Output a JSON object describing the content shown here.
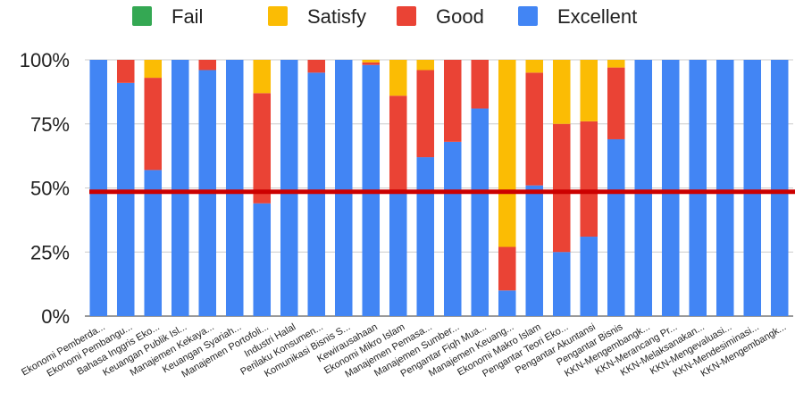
{
  "chart_data": {
    "type": "bar",
    "stacked": true,
    "percent": true,
    "legend_position": "top",
    "grid": true,
    "ylim": [
      0,
      100
    ],
    "y_ticks": [
      "0%",
      "25%",
      "50%",
      "75%",
      "100%"
    ],
    "categories": [
      "Ekonomi Pemberda...",
      "Ekonomi Pembangu...",
      "Bahasa Inggris Eko...",
      "Keuangan Publik Isl...",
      "Manajemen Kekaya...",
      "Keuangan Syariah...",
      "Manajemen Portofoli...",
      "Industri Halal",
      "Perilaku Konsumen...",
      "Komunikasi Bisnis S...",
      "Kewirausahaan",
      "Ekonomi Mikro Islam",
      "Manajemen Pemasa...",
      "Manajemen Sumber...",
      "Pengantar Fiqh Mua...",
      "Manajemen Keuang...",
      "Ekonomi Makro Islam",
      "Pengantar Teori Eko...",
      "Pengantar Akuntansi",
      "Pengantar Bisnis",
      "KKN-Mengembangk...",
      "KKN-Merancang Pr...",
      "KKN-Melaksanakan...",
      "KKN-Mengevaluasi...",
      "KKN-Mendesiminasi...",
      "KKN-Mengembangk..."
    ],
    "series": [
      {
        "name": "Fail",
        "color": "#34a853",
        "values": [
          0,
          0,
          0,
          0,
          0,
          0,
          0,
          0,
          0,
          0,
          0,
          0,
          0,
          0,
          0,
          0,
          0,
          0,
          0,
          0,
          0,
          0,
          0,
          0,
          0,
          0
        ]
      },
      {
        "name": "Satisfy",
        "color": "#fbbc04",
        "values": [
          0,
          0,
          7,
          0,
          0,
          0,
          13,
          0,
          0,
          0,
          1,
          14,
          4,
          0,
          0,
          73,
          5,
          25,
          24,
          3,
          0,
          0,
          0,
          0,
          0,
          0
        ]
      },
      {
        "name": "Good",
        "color": "#ea4335",
        "values": [
          0,
          9,
          36,
          0,
          4,
          0,
          43,
          0,
          5,
          0,
          1,
          38,
          34,
          32,
          19,
          17,
          44,
          50,
          45,
          28,
          0,
          0,
          0,
          0,
          0,
          0
        ]
      },
      {
        "name": "Excellent",
        "color": "#4285f4",
        "values": [
          100,
          91,
          57,
          100,
          96,
          100,
          44,
          100,
          95,
          100,
          98,
          48,
          62,
          68,
          81,
          10,
          51,
          25,
          31,
          69,
          100,
          100,
          100,
          100,
          100,
          100
        ]
      }
    ],
    "reference_line": {
      "value": 48.5,
      "color": "#cc0000"
    }
  }
}
